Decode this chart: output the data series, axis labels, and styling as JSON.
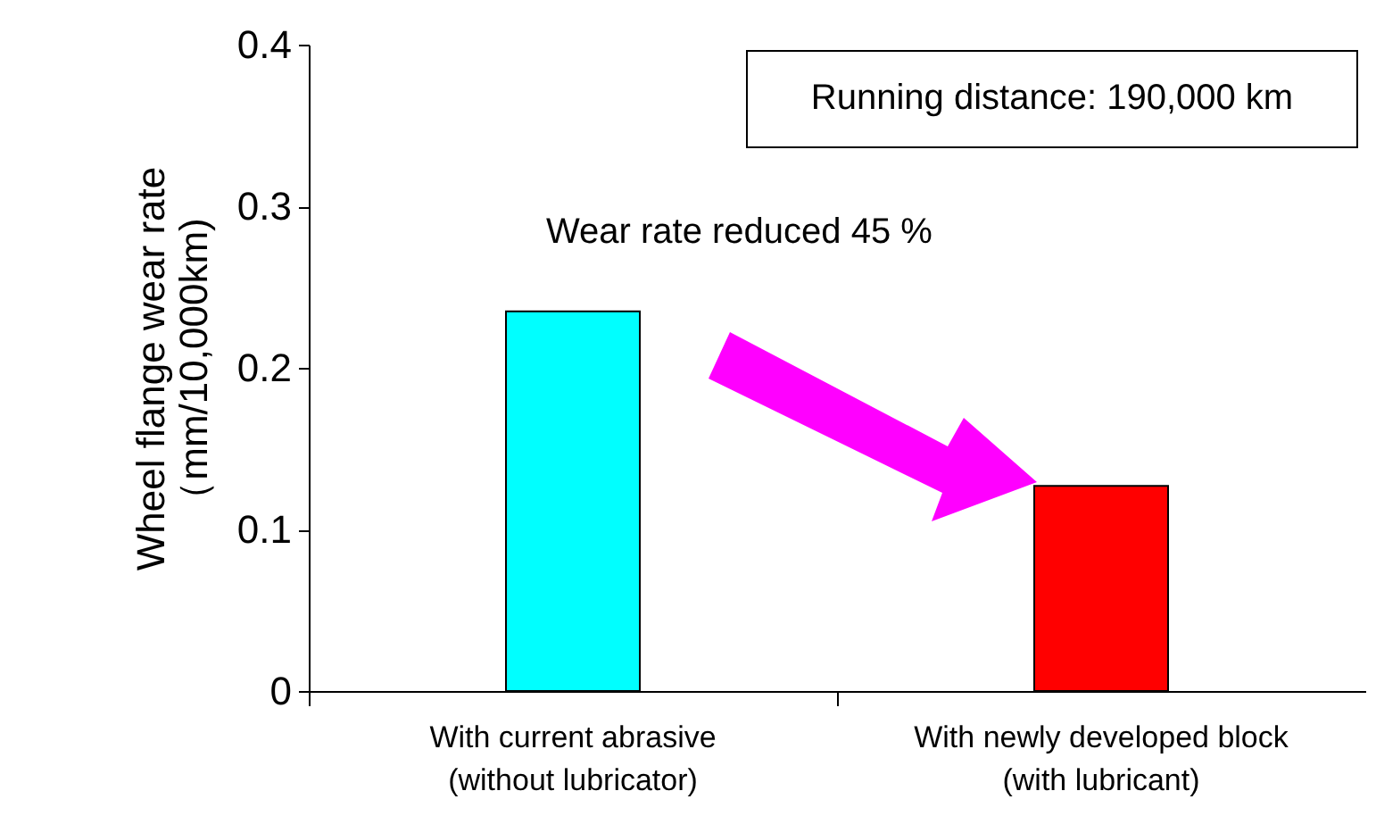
{
  "chart_data": {
    "type": "bar",
    "categories": [
      "With current abrasive\n(without lubricator)",
      "With newly developed block\n(with lubricant)"
    ],
    "values": [
      0.235,
      0.127
    ],
    "colors": [
      "#00ffff",
      "#ff0000"
    ],
    "ylabel": "Wheel flange wear rate\n（mm/10,000km)",
    "ylim": [
      0,
      0.4
    ],
    "yticks": [
      {
        "value": 0,
        "label": "0"
      },
      0.1,
      0.2,
      0.3,
      0.4
    ],
    "grid": false,
    "annotations": [
      "Running distance: 190,000 km",
      "Wear rate reduced 45 %"
    ]
  }
}
